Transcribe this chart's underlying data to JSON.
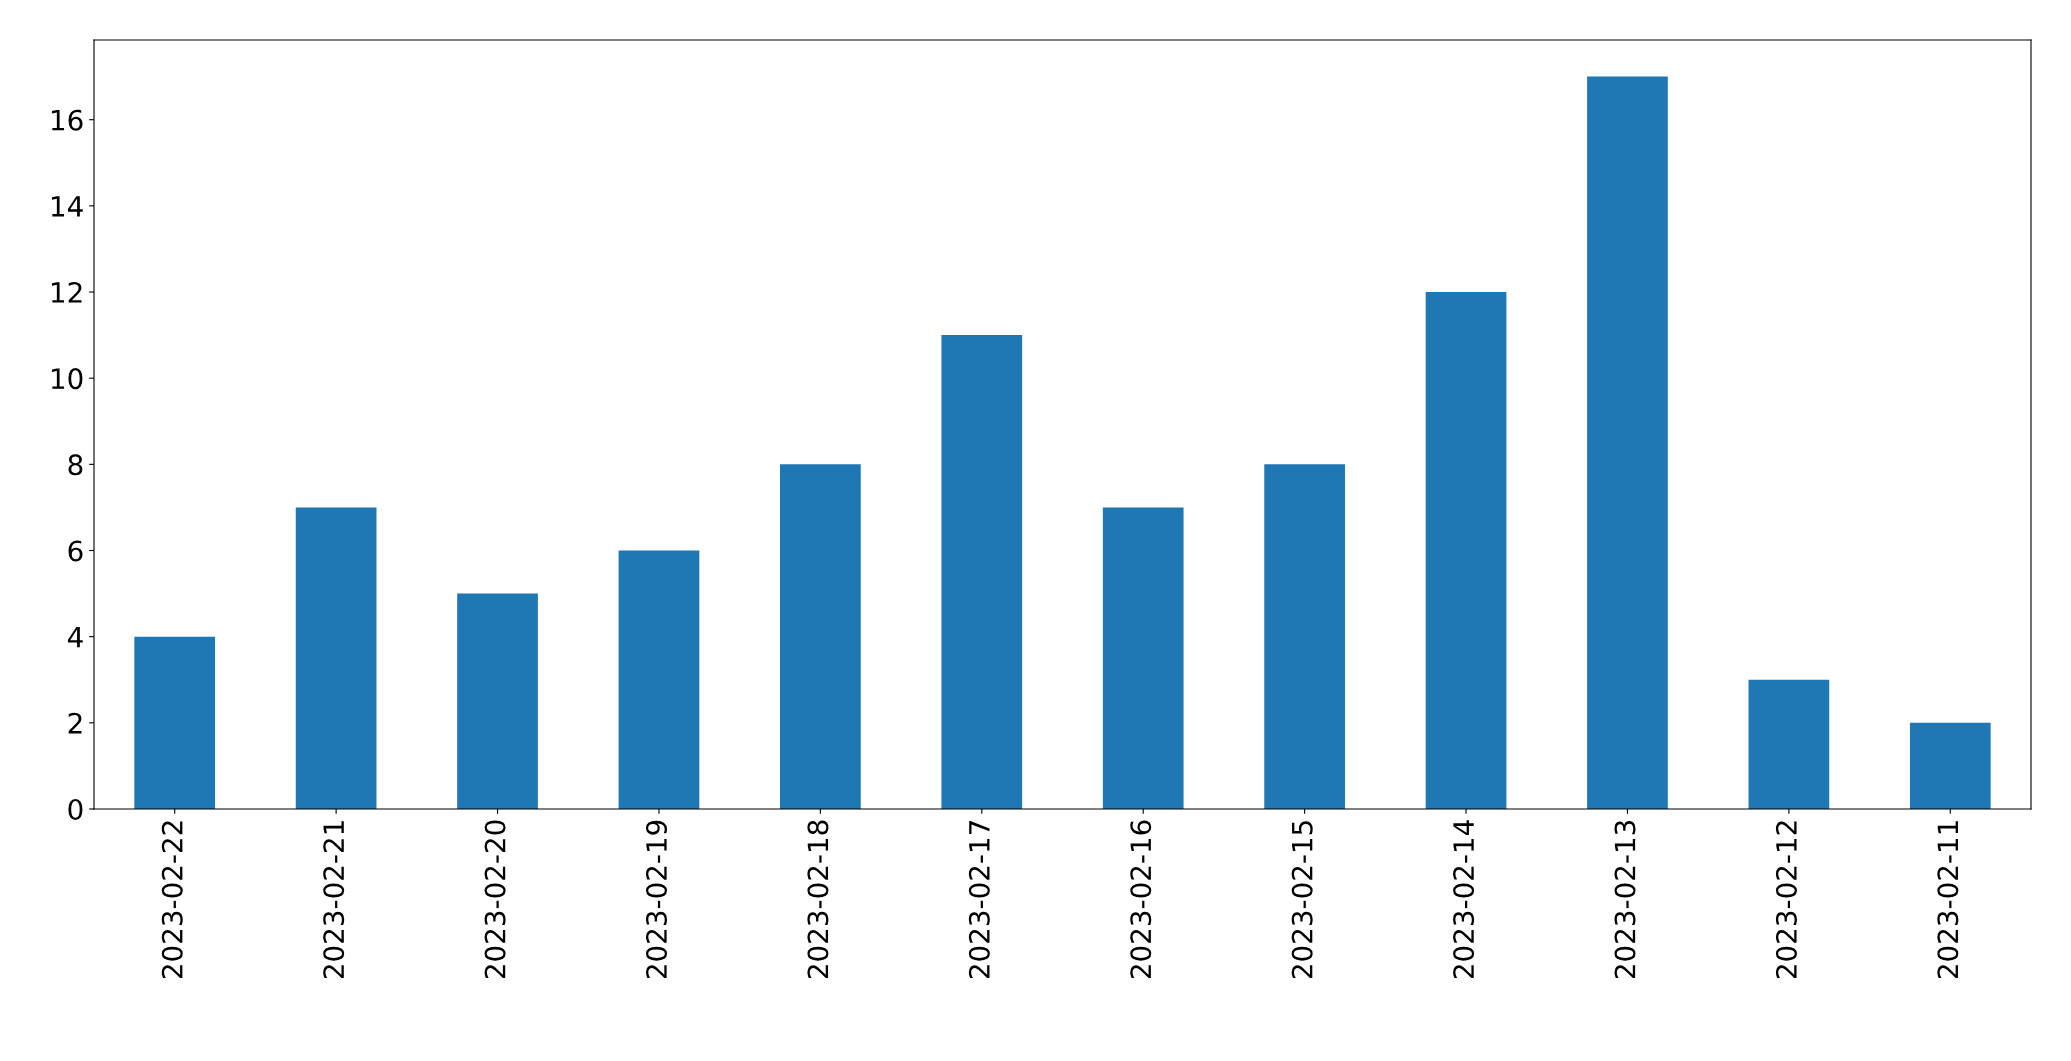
{
  "chart_data": {
    "type": "bar",
    "categories": [
      "2023-02-22",
      "2023-02-21",
      "2023-02-20",
      "2023-02-19",
      "2023-02-18",
      "2023-02-17",
      "2023-02-16",
      "2023-02-15",
      "2023-02-14",
      "2023-02-13",
      "2023-02-12",
      "2023-02-11"
    ],
    "values": [
      4,
      7,
      5,
      6,
      8,
      11,
      7,
      8,
      12,
      17,
      3,
      2
    ],
    "color": "#1f77b4",
    "ylim": [
      0,
      17.85
    ],
    "yticks": [
      0,
      2,
      4,
      6,
      8,
      10,
      12,
      14,
      16
    ],
    "grid": false,
    "legend": false
  }
}
